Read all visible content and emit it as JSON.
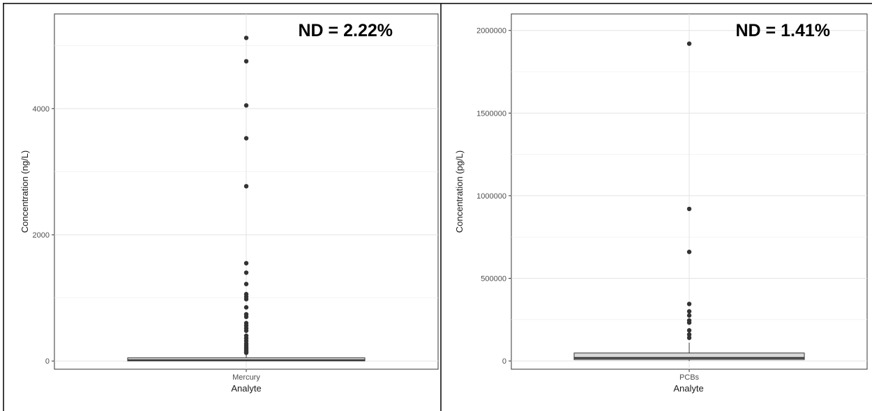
{
  "chart_data": [
    {
      "type": "box",
      "xlabel": "Analyte",
      "ylabel": "Concentration (ng/L)",
      "categories": [
        "Mercury"
      ],
      "annotation": "ND = 2.22%",
      "ylim": [
        -130,
        5500
      ],
      "yticks": [
        0,
        2000,
        4000
      ],
      "ytick_labels": [
        "0",
        "2000",
        "4000"
      ],
      "grid": true,
      "box": {
        "min": 0,
        "q1": 2,
        "median": 12,
        "q3": 50,
        "max": 120
      },
      "outliers": [
        5120,
        4750,
        4050,
        3530,
        2770,
        1550,
        1400,
        1220,
        1060,
        1020,
        980,
        850,
        740,
        700,
        600,
        560,
        520,
        480,
        400,
        360,
        320,
        280,
        250,
        220,
        200,
        180,
        160,
        140,
        130
      ]
    },
    {
      "type": "box",
      "xlabel": "Analyte",
      "ylabel": "Concentration (pg/L)",
      "categories": [
        "PCBs"
      ],
      "annotation": "ND = 1.41%",
      "ylim": [
        -50000,
        2100000
      ],
      "yticks": [
        0,
        500000,
        1000000,
        1500000,
        2000000
      ],
      "ytick_labels": [
        "0",
        "500000",
        "1000000",
        "1500000",
        "2000000"
      ],
      "grid": true,
      "box": {
        "min": 0,
        "q1": 8000,
        "median": 18000,
        "q3": 48000,
        "max": 110000
      },
      "outliers": [
        1920000,
        920000,
        660000,
        345000,
        300000,
        275000,
        245000,
        232000,
        185000,
        160000,
        140000
      ]
    }
  ]
}
